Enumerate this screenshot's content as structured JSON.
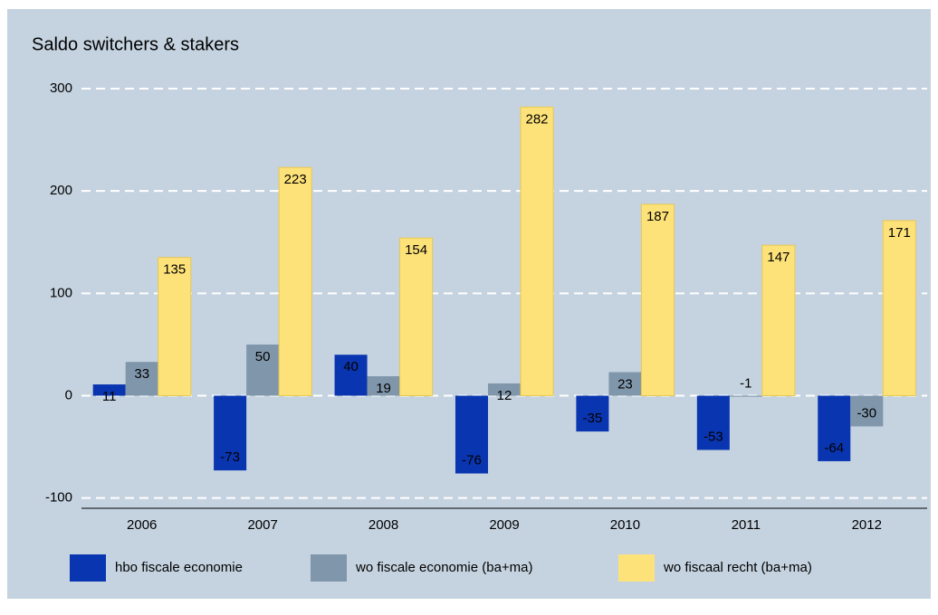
{
  "chart_data": {
    "type": "bar",
    "title": "Saldo switchers & stakers",
    "categories": [
      "2006",
      "2007",
      "2008",
      "2009",
      "2010",
      "2011",
      "2012"
    ],
    "series": [
      {
        "name": "hbo fiscale economie",
        "color": "#0a35b0",
        "values": [
          11,
          -73,
          40,
          -76,
          -35,
          -53,
          -64
        ]
      },
      {
        "name": "wo fiscale economie (ba+ma)",
        "color": "#8096ab",
        "values": [
          33,
          50,
          19,
          12,
          23,
          -1,
          -30
        ]
      },
      {
        "name": "wo fiscaal recht (ba+ma)",
        "color": "#fde27a",
        "values": [
          135,
          223,
          154,
          282,
          187,
          147,
          171
        ]
      }
    ],
    "ylim": [
      -110,
      300
    ],
    "yticks": [
      -100,
      0,
      100,
      200,
      300
    ],
    "grid": true,
    "legend": "bottom"
  }
}
